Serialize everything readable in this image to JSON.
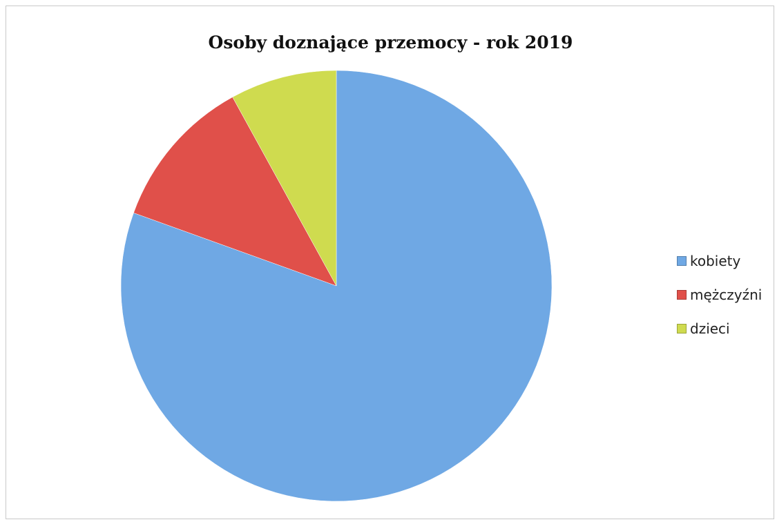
{
  "chart_data": {
    "type": "pie",
    "title": "Osoby doznające przemocy - rok 2019",
    "slices": [
      {
        "label": "kobiety",
        "value": 80.5,
        "color": "#6fa8e4"
      },
      {
        "label": "mężczyźni",
        "value": 11.5,
        "color": "#e0504a"
      },
      {
        "label": "dzieci",
        "value": 8.0,
        "color": "#cfdb4f"
      }
    ],
    "legend_position": "right"
  }
}
